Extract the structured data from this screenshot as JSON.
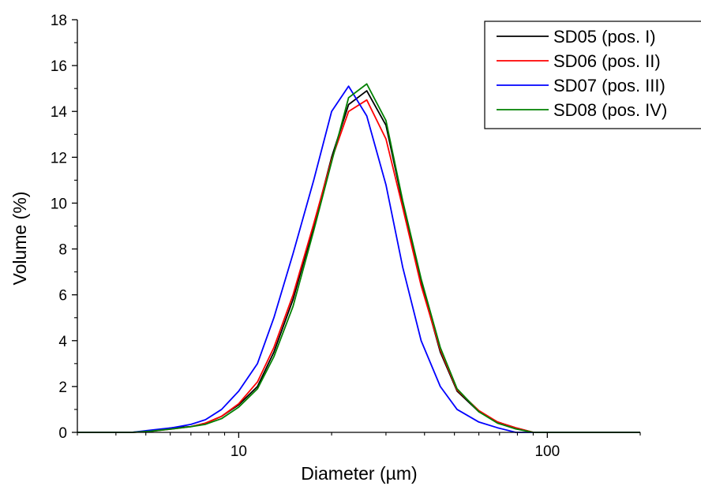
{
  "chart_data": {
    "type": "line",
    "title": "",
    "xlabel": "Diameter (µm)",
    "ylabel": "Volume (%)",
    "x_scale": "log",
    "xlim": [
      3,
      200
    ],
    "ylim": [
      0,
      18
    ],
    "x_ticks": [
      {
        "value": 10,
        "label": "10"
      },
      {
        "value": 100,
        "label": "100"
      }
    ],
    "y_ticks": [
      {
        "value": 0,
        "label": "0"
      },
      {
        "value": 2,
        "label": "2"
      },
      {
        "value": 4,
        "label": "4"
      },
      {
        "value": 6,
        "label": "6"
      },
      {
        "value": 8,
        "label": "8"
      },
      {
        "value": 10,
        "label": "10"
      },
      {
        "value": 12,
        "label": "12"
      },
      {
        "value": 14,
        "label": "14"
      },
      {
        "value": 16,
        "label": "16"
      },
      {
        "value": 18,
        "label": "18"
      }
    ],
    "grid": false,
    "legend_position": "top-right",
    "series": [
      {
        "name": "SD05 (pos. I)",
        "color": "#000000",
        "x": [
          3,
          4.5,
          5.2,
          6.1,
          7.0,
          7.8,
          8.8,
          10.0,
          11.5,
          13.0,
          15.0,
          17.5,
          20.0,
          22.7,
          26.0,
          30.0,
          34.0,
          39.0,
          45.0,
          51.0,
          60.0,
          69.0,
          79.0,
          90.0,
          200
        ],
        "y": [
          0,
          0,
          0.05,
          0.2,
          0.25,
          0.4,
          0.7,
          1.2,
          2.0,
          3.5,
          5.8,
          9.0,
          12.0,
          14.3,
          14.9,
          13.4,
          10.0,
          6.5,
          3.5,
          1.8,
          0.9,
          0.45,
          0.2,
          0,
          0
        ]
      },
      {
        "name": "SD06 (pos. II)",
        "color": "#ff0000",
        "x": [
          3,
          4.5,
          5.2,
          6.1,
          7.0,
          7.8,
          8.8,
          10.0,
          11.5,
          13.0,
          15.0,
          17.5,
          20.0,
          22.7,
          26.0,
          30.0,
          34.0,
          39.0,
          45.0,
          51.0,
          60.0,
          69.0,
          79.0,
          90.0,
          200
        ],
        "y": [
          0,
          0,
          0.05,
          0.15,
          0.25,
          0.4,
          0.7,
          1.25,
          2.2,
          3.7,
          6.0,
          9.1,
          11.9,
          14.0,
          14.5,
          12.8,
          9.8,
          6.4,
          3.6,
          1.85,
          0.95,
          0.45,
          0.2,
          0,
          0
        ]
      },
      {
        "name": "SD07 (pos. III)",
        "color": "#0000ff",
        "x": [
          3,
          4.5,
          5.2,
          6.1,
          7.0,
          7.8,
          8.8,
          10.0,
          11.5,
          13.0,
          15.0,
          17.5,
          20.0,
          22.7,
          26.0,
          30.0,
          34.0,
          39.0,
          45.0,
          51.0,
          60.0,
          69.0,
          79.0,
          90.0,
          200
        ],
        "y": [
          0,
          0,
          0.1,
          0.2,
          0.35,
          0.55,
          1.0,
          1.8,
          3.0,
          5.0,
          7.8,
          11.0,
          14.0,
          15.1,
          13.8,
          10.8,
          7.2,
          4.0,
          2.0,
          1.0,
          0.45,
          0.2,
          0,
          0,
          0
        ]
      },
      {
        "name": "SD08 (pos. IV)",
        "color": "#008000",
        "x": [
          3,
          4.5,
          5.2,
          6.1,
          7.0,
          7.8,
          8.8,
          10.0,
          11.5,
          13.0,
          15.0,
          17.5,
          20.0,
          22.7,
          26.0,
          30.0,
          34.0,
          39.0,
          45.0,
          51.0,
          60.0,
          69.0,
          79.0,
          90.0,
          200
        ],
        "y": [
          0,
          0,
          0.05,
          0.15,
          0.25,
          0.35,
          0.6,
          1.1,
          1.9,
          3.3,
          5.5,
          8.8,
          11.8,
          14.6,
          15.2,
          13.6,
          10.1,
          6.7,
          3.7,
          1.9,
          0.9,
          0.4,
          0.15,
          0,
          0
        ]
      }
    ]
  }
}
